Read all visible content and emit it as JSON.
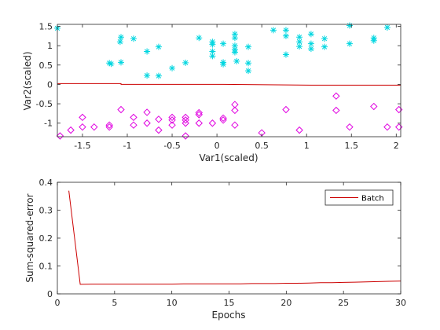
{
  "chart_data": [
    {
      "type": "scatter",
      "xlabel": "Var1(scaled)",
      "ylabel": "Var2(scaled)",
      "xlim": [
        -1.78,
        2.05
      ],
      "ylim": [
        -1.35,
        1.55
      ],
      "xticks": [
        -1.5,
        -1,
        -0.5,
        0,
        0.5,
        1,
        1.5,
        2
      ],
      "xtick_labels": [
        "-1.5",
        "-1",
        "-0.5",
        "0",
        "0.5",
        "1",
        "1.5",
        "2"
      ],
      "yticks": [
        -1,
        -0.5,
        0,
        0.5,
        1,
        1.5
      ],
      "ytick_labels": [
        "-1",
        "-0.5",
        "0",
        "0.5",
        "1",
        "1.5"
      ],
      "grid": false,
      "series": [
        {
          "marker": "asterisk",
          "color": "#00D6E0",
          "points": [
            [
              -1.78,
              1.45
            ],
            [
              -1.2,
              0.55
            ],
            [
              -1.18,
              0.53
            ],
            [
              -1.07,
              1.22
            ],
            [
              -1.08,
              1.1
            ],
            [
              -1.07,
              0.57
            ],
            [
              -0.93,
              1.18
            ],
            [
              -0.78,
              0.85
            ],
            [
              -0.78,
              0.23
            ],
            [
              -0.65,
              0.97
            ],
            [
              -0.65,
              0.22
            ],
            [
              -0.5,
              0.42
            ],
            [
              -0.35,
              0.56
            ],
            [
              -0.2,
              1.2
            ],
            [
              -0.05,
              1.1
            ],
            [
              -0.05,
              1.03
            ],
            [
              -0.05,
              0.85
            ],
            [
              -0.05,
              0.73
            ],
            [
              0.07,
              1.05
            ],
            [
              0.07,
              0.57
            ],
            [
              0.07,
              0.52
            ],
            [
              0.2,
              1.3
            ],
            [
              0.2,
              1.2
            ],
            [
              0.2,
              1.0
            ],
            [
              0.2,
              0.9
            ],
            [
              0.2,
              0.83
            ],
            [
              0.22,
              0.6
            ],
            [
              0.35,
              0.97
            ],
            [
              0.35,
              0.55
            ],
            [
              0.35,
              0.35
            ],
            [
              0.63,
              1.4
            ],
            [
              0.77,
              1.4
            ],
            [
              0.77,
              1.25
            ],
            [
              0.77,
              0.77
            ],
            [
              0.92,
              1.22
            ],
            [
              0.92,
              1.1
            ],
            [
              0.92,
              0.98
            ],
            [
              1.05,
              1.3
            ],
            [
              1.05,
              1.05
            ],
            [
              1.05,
              0.92
            ],
            [
              1.2,
              1.18
            ],
            [
              1.2,
              0.97
            ],
            [
              1.48,
              1.52
            ],
            [
              1.48,
              1.05
            ],
            [
              1.75,
              1.2
            ],
            [
              1.75,
              1.13
            ],
            [
              1.9,
              1.47
            ]
          ]
        },
        {
          "marker": "diamond",
          "color": "#E000E0",
          "points": [
            [
              -1.75,
              -1.33
            ],
            [
              -1.63,
              -1.18
            ],
            [
              -1.5,
              -0.85
            ],
            [
              -1.5,
              -1.1
            ],
            [
              -1.37,
              -1.1
            ],
            [
              -1.2,
              -1.05
            ],
            [
              -1.2,
              -1.1
            ],
            [
              -1.07,
              -0.65
            ],
            [
              -0.93,
              -0.85
            ],
            [
              -0.93,
              -1.05
            ],
            [
              -0.78,
              -0.72
            ],
            [
              -0.78,
              -1.0
            ],
            [
              -0.65,
              -0.9
            ],
            [
              -0.65,
              -1.18
            ],
            [
              -0.5,
              -0.85
            ],
            [
              -0.5,
              -0.92
            ],
            [
              -0.5,
              -1.05
            ],
            [
              -0.35,
              -0.85
            ],
            [
              -0.35,
              -0.92
            ],
            [
              -0.35,
              -1.0
            ],
            [
              -0.35,
              -1.33
            ],
            [
              -0.2,
              -0.73
            ],
            [
              -0.2,
              -0.78
            ],
            [
              -0.2,
              -1.0
            ],
            [
              -0.05,
              -1.0
            ],
            [
              0.07,
              -0.87
            ],
            [
              0.07,
              -0.92
            ],
            [
              0.2,
              -0.52
            ],
            [
              0.2,
              -0.67
            ],
            [
              0.2,
              -1.05
            ],
            [
              0.5,
              -1.25
            ],
            [
              0.77,
              -0.65
            ],
            [
              0.92,
              -1.18
            ],
            [
              1.33,
              -0.3
            ],
            [
              1.33,
              -0.67
            ],
            [
              1.48,
              -1.1
            ],
            [
              1.75,
              -0.57
            ],
            [
              1.9,
              -1.1
            ],
            [
              2.03,
              -0.65
            ],
            [
              2.03,
              -1.1
            ]
          ]
        }
      ],
      "boundary": {
        "color": "#CC0000",
        "points": [
          [
            -1.78,
            0.02
          ],
          [
            -1.07,
            0.02
          ],
          [
            -1.07,
            0.0
          ],
          [
            0.07,
            0.0
          ],
          [
            1.05,
            -0.02
          ],
          [
            2.05,
            -0.02
          ]
        ]
      }
    },
    {
      "type": "line",
      "xlabel": "Epochs",
      "ylabel": "Sum-squared-error",
      "xlim": [
        0,
        30
      ],
      "ylim": [
        0,
        0.4
      ],
      "xticks": [
        0,
        5,
        10,
        15,
        20,
        25,
        30
      ],
      "xtick_labels": [
        "0",
        "5",
        "10",
        "15",
        "20",
        "25",
        "30"
      ],
      "yticks": [
        0,
        0.1,
        0.2,
        0.3,
        0.4
      ],
      "ytick_labels": [
        "0",
        "0.1",
        "0.2",
        "0.3",
        "0.4"
      ],
      "grid": false,
      "legend_position": "top-right",
      "series": [
        {
          "name": "Batch",
          "color": "#CC0000",
          "x": [
            1,
            2,
            3,
            4,
            5,
            6,
            7,
            8,
            9,
            10,
            11,
            12,
            13,
            14,
            15,
            16,
            17,
            18,
            19,
            20,
            21,
            22,
            23,
            24,
            25,
            26,
            27,
            28,
            29,
            30
          ],
          "values": [
            0.37,
            0.034,
            0.035,
            0.035,
            0.035,
            0.035,
            0.035,
            0.035,
            0.035,
            0.035,
            0.036,
            0.036,
            0.036,
            0.036,
            0.036,
            0.036,
            0.037,
            0.037,
            0.037,
            0.038,
            0.038,
            0.039,
            0.04,
            0.04,
            0.041,
            0.042,
            0.043,
            0.044,
            0.045,
            0.046
          ]
        }
      ]
    }
  ]
}
